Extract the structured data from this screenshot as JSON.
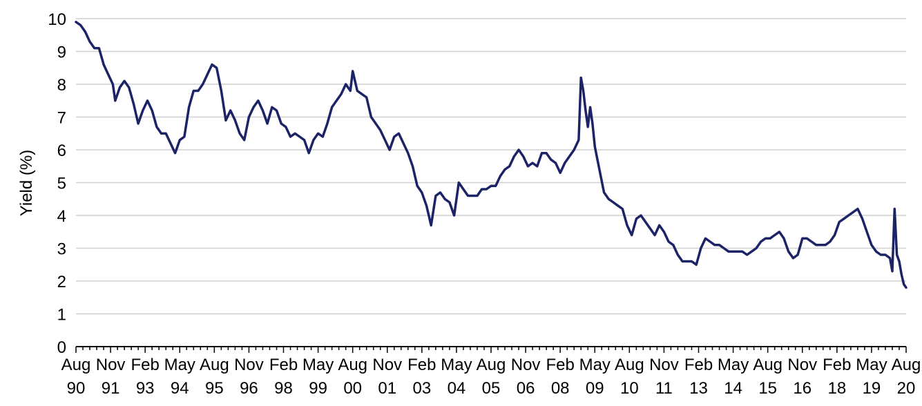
{
  "chart_data": {
    "type": "line",
    "title": "",
    "xlabel": "",
    "ylabel": "Yield (%)",
    "ylim": [
      0,
      10
    ],
    "xlim": [
      "1990-08",
      "2020-08"
    ],
    "grid": "horizontal",
    "y_ticks": [
      "0",
      "1",
      "2",
      "3",
      "4",
      "5",
      "6",
      "7",
      "8",
      "9",
      "10"
    ],
    "x_ticks": [
      {
        "line1": "Aug",
        "line2": "90",
        "date": "1990-08"
      },
      {
        "line1": "Nov",
        "line2": "91",
        "date": "1991-11"
      },
      {
        "line1": "Feb",
        "line2": "93",
        "date": "1993-02"
      },
      {
        "line1": "May",
        "line2": "94",
        "date": "1994-05"
      },
      {
        "line1": "Aug",
        "line2": "95",
        "date": "1995-08"
      },
      {
        "line1": "Nov",
        "line2": "96",
        "date": "1996-11"
      },
      {
        "line1": "Feb",
        "line2": "98",
        "date": "1998-02"
      },
      {
        "line1": "May",
        "line2": "99",
        "date": "1999-05"
      },
      {
        "line1": "Aug",
        "line2": "00",
        "date": "2000-08"
      },
      {
        "line1": "Nov",
        "line2": "01",
        "date": "2001-11"
      },
      {
        "line1": "Feb",
        "line2": "03",
        "date": "2003-02"
      },
      {
        "line1": "May",
        "line2": "04",
        "date": "2004-05"
      },
      {
        "line1": "Aug",
        "line2": "05",
        "date": "2005-08"
      },
      {
        "line1": "Nov",
        "line2": "06",
        "date": "2006-11"
      },
      {
        "line1": "Feb",
        "line2": "08",
        "date": "2008-02"
      },
      {
        "line1": "May",
        "line2": "09",
        "date": "2009-05"
      },
      {
        "line1": "Aug",
        "line2": "10",
        "date": "2010-08"
      },
      {
        "line1": "Nov",
        "line2": "11",
        "date": "2011-11"
      },
      {
        "line1": "Feb",
        "line2": "13",
        "date": "2013-02"
      },
      {
        "line1": "May",
        "line2": "14",
        "date": "2014-05"
      },
      {
        "line1": "Aug",
        "line2": "15",
        "date": "2015-08"
      },
      {
        "line1": "Nov",
        "line2": "16",
        "date": "2016-11"
      },
      {
        "line1": "Feb",
        "line2": "18",
        "date": "2018-02"
      },
      {
        "line1": "May",
        "line2": "19",
        "date": "2019-05"
      },
      {
        "line1": "Aug",
        "line2": "20",
        "date": "2020-08"
      }
    ],
    "series": [
      {
        "color": "#1c2366",
        "points": [
          [
            "1990-08",
            9.9
          ],
          [
            "1990-10",
            9.8
          ],
          [
            "1990-12",
            9.6
          ],
          [
            "1991-02",
            9.3
          ],
          [
            "1991-04",
            9.1
          ],
          [
            "1991-06",
            9.1
          ],
          [
            "1991-08",
            8.6
          ],
          [
            "1991-10",
            8.3
          ],
          [
            "1991-12",
            8.0
          ],
          [
            "1992-01",
            7.5
          ],
          [
            "1992-03",
            7.9
          ],
          [
            "1992-05",
            8.1
          ],
          [
            "1992-07",
            7.9
          ],
          [
            "1992-09",
            7.4
          ],
          [
            "1992-11",
            6.8
          ],
          [
            "1993-01",
            7.2
          ],
          [
            "1993-03",
            7.5
          ],
          [
            "1993-05",
            7.2
          ],
          [
            "1993-07",
            6.7
          ],
          [
            "1993-09",
            6.5
          ],
          [
            "1993-11",
            6.5
          ],
          [
            "1994-01",
            6.2
          ],
          [
            "1994-03",
            5.9
          ],
          [
            "1994-05",
            6.3
          ],
          [
            "1994-07",
            6.4
          ],
          [
            "1994-09",
            7.3
          ],
          [
            "1994-11",
            7.8
          ],
          [
            "1995-01",
            7.8
          ],
          [
            "1995-03",
            8.0
          ],
          [
            "1995-05",
            8.3
          ],
          [
            "1995-07",
            8.6
          ],
          [
            "1995-09",
            8.5
          ],
          [
            "1995-11",
            7.8
          ],
          [
            "1996-01",
            6.9
          ],
          [
            "1996-03",
            7.2
          ],
          [
            "1996-05",
            6.9
          ],
          [
            "1996-07",
            6.5
          ],
          [
            "1996-09",
            6.3
          ],
          [
            "1996-11",
            7.0
          ],
          [
            "1997-01",
            7.3
          ],
          [
            "1997-03",
            7.5
          ],
          [
            "1997-05",
            7.2
          ],
          [
            "1997-07",
            6.8
          ],
          [
            "1997-09",
            7.3
          ],
          [
            "1997-11",
            7.2
          ],
          [
            "1998-01",
            6.8
          ],
          [
            "1998-03",
            6.7
          ],
          [
            "1998-05",
            6.4
          ],
          [
            "1998-07",
            6.5
          ],
          [
            "1998-09",
            6.4
          ],
          [
            "1998-11",
            6.3
          ],
          [
            "1999-01",
            5.9
          ],
          [
            "1999-03",
            6.3
          ],
          [
            "1999-05",
            6.5
          ],
          [
            "1999-07",
            6.4
          ],
          [
            "1999-09",
            6.8
          ],
          [
            "1999-11",
            7.3
          ],
          [
            "2000-01",
            7.5
          ],
          [
            "2000-03",
            7.7
          ],
          [
            "2000-05",
            8.0
          ],
          [
            "2000-07",
            7.8
          ],
          [
            "2000-08",
            8.4
          ],
          [
            "2000-10",
            7.8
          ],
          [
            "2000-12",
            7.7
          ],
          [
            "2001-02",
            7.6
          ],
          [
            "2001-04",
            7.0
          ],
          [
            "2001-06",
            6.8
          ],
          [
            "2001-08",
            6.6
          ],
          [
            "2001-10",
            6.3
          ],
          [
            "2001-12",
            6.0
          ],
          [
            "2002-02",
            6.4
          ],
          [
            "2002-04",
            6.5
          ],
          [
            "2002-06",
            6.2
          ],
          [
            "2002-08",
            5.9
          ],
          [
            "2002-10",
            5.5
          ],
          [
            "2002-12",
            4.9
          ],
          [
            "2003-02",
            4.7
          ],
          [
            "2003-04",
            4.3
          ],
          [
            "2003-06",
            3.7
          ],
          [
            "2003-08",
            4.6
          ],
          [
            "2003-10",
            4.7
          ],
          [
            "2003-12",
            4.5
          ],
          [
            "2004-02",
            4.4
          ],
          [
            "2004-04",
            4.0
          ],
          [
            "2004-06",
            5.0
          ],
          [
            "2004-08",
            4.8
          ],
          [
            "2004-10",
            4.6
          ],
          [
            "2004-12",
            4.6
          ],
          [
            "2005-02",
            4.6
          ],
          [
            "2005-04",
            4.8
          ],
          [
            "2005-06",
            4.8
          ],
          [
            "2005-08",
            4.9
          ],
          [
            "2005-10",
            4.9
          ],
          [
            "2005-12",
            5.2
          ],
          [
            "2006-02",
            5.4
          ],
          [
            "2006-04",
            5.5
          ],
          [
            "2006-06",
            5.8
          ],
          [
            "2006-08",
            6.0
          ],
          [
            "2006-10",
            5.8
          ],
          [
            "2006-12",
            5.5
          ],
          [
            "2007-02",
            5.6
          ],
          [
            "2007-04",
            5.5
          ],
          [
            "2007-06",
            5.9
          ],
          [
            "2007-08",
            5.9
          ],
          [
            "2007-10",
            5.7
          ],
          [
            "2007-12",
            5.6
          ],
          [
            "2008-02",
            5.3
          ],
          [
            "2008-04",
            5.6
          ],
          [
            "2008-06",
            5.8
          ],
          [
            "2008-08",
            6.0
          ],
          [
            "2008-10",
            6.3
          ],
          [
            "2008-11",
            8.2
          ],
          [
            "2008-12",
            7.8
          ],
          [
            "2009-01",
            7.2
          ],
          [
            "2009-02",
            6.7
          ],
          [
            "2009-03",
            7.3
          ],
          [
            "2009-04",
            6.8
          ],
          [
            "2009-05",
            6.1
          ],
          [
            "2009-07",
            5.4
          ],
          [
            "2009-09",
            4.7
          ],
          [
            "2009-11",
            4.5
          ],
          [
            "2010-01",
            4.4
          ],
          [
            "2010-03",
            4.3
          ],
          [
            "2010-05",
            4.2
          ],
          [
            "2010-07",
            3.7
          ],
          [
            "2010-09",
            3.4
          ],
          [
            "2010-11",
            3.9
          ],
          [
            "2011-01",
            4.0
          ],
          [
            "2011-03",
            3.8
          ],
          [
            "2011-05",
            3.6
          ],
          [
            "2011-07",
            3.4
          ],
          [
            "2011-09",
            3.7
          ],
          [
            "2011-11",
            3.5
          ],
          [
            "2012-01",
            3.2
          ],
          [
            "2012-03",
            3.1
          ],
          [
            "2012-05",
            2.8
          ],
          [
            "2012-07",
            2.6
          ],
          [
            "2012-09",
            2.6
          ],
          [
            "2012-11",
            2.6
          ],
          [
            "2013-01",
            2.5
          ],
          [
            "2013-03",
            3.0
          ],
          [
            "2013-05",
            3.3
          ],
          [
            "2013-07",
            3.2
          ],
          [
            "2013-09",
            3.1
          ],
          [
            "2013-11",
            3.1
          ],
          [
            "2014-01",
            3.0
          ],
          [
            "2014-03",
            2.9
          ],
          [
            "2014-05",
            2.9
          ],
          [
            "2014-07",
            2.9
          ],
          [
            "2014-09",
            2.9
          ],
          [
            "2014-11",
            2.8
          ],
          [
            "2015-01",
            2.9
          ],
          [
            "2015-03",
            3.0
          ],
          [
            "2015-05",
            3.2
          ],
          [
            "2015-07",
            3.3
          ],
          [
            "2015-09",
            3.3
          ],
          [
            "2015-11",
            3.4
          ],
          [
            "2016-01",
            3.5
          ],
          [
            "2016-03",
            3.3
          ],
          [
            "2016-05",
            2.9
          ],
          [
            "2016-07",
            2.7
          ],
          [
            "2016-09",
            2.8
          ],
          [
            "2016-11",
            3.3
          ],
          [
            "2017-01",
            3.3
          ],
          [
            "2017-03",
            3.2
          ],
          [
            "2017-05",
            3.1
          ],
          [
            "2017-07",
            3.1
          ],
          [
            "2017-09",
            3.1
          ],
          [
            "2017-11",
            3.2
          ],
          [
            "2018-01",
            3.4
          ],
          [
            "2018-03",
            3.8
          ],
          [
            "2018-05",
            3.9
          ],
          [
            "2018-07",
            4.0
          ],
          [
            "2018-09",
            4.1
          ],
          [
            "2018-11",
            4.2
          ],
          [
            "2019-01",
            3.9
          ],
          [
            "2019-03",
            3.5
          ],
          [
            "2019-05",
            3.1
          ],
          [
            "2019-07",
            2.9
          ],
          [
            "2019-09",
            2.8
          ],
          [
            "2019-11",
            2.8
          ],
          [
            "2020-01",
            2.7
          ],
          [
            "2020-02",
            2.3
          ],
          [
            "2020-03",
            4.2
          ],
          [
            "2020-04",
            2.8
          ],
          [
            "2020-05",
            2.6
          ],
          [
            "2020-06",
            2.2
          ],
          [
            "2020-07",
            1.9
          ],
          [
            "2020-08",
            1.8
          ]
        ]
      }
    ]
  }
}
